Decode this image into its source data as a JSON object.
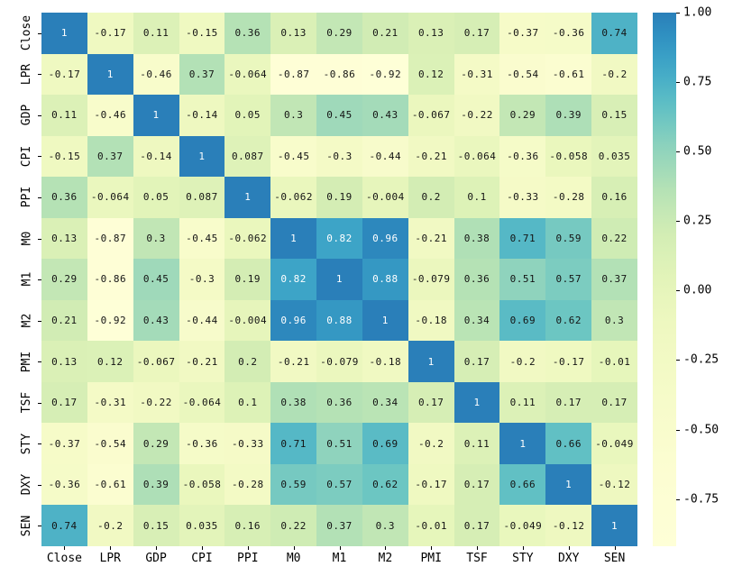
{
  "figure": {
    "background_color": "#ffffff",
    "text_color": "#000000"
  },
  "chart_data": {
    "type": "heatmap",
    "title": "",
    "description": "Correlation matrix heatmap with annotated values",
    "labels": [
      "Close",
      "LPR",
      "GDP",
      "CPI",
      "PPI",
      "M0",
      "M1",
      "M2",
      "PMI",
      "TSF",
      "STY",
      "DXY",
      "SEN"
    ],
    "matrix": [
      [
        1,
        -0.17,
        0.11,
        -0.15,
        0.36,
        0.13,
        0.29,
        0.21,
        0.13,
        0.17,
        -0.37,
        -0.36,
        0.74
      ],
      [
        -0.17,
        1,
        -0.46,
        0.37,
        -0.064,
        -0.87,
        -0.86,
        -0.92,
        0.12,
        -0.31,
        -0.54,
        -0.61,
        -0.2
      ],
      [
        0.11,
        -0.46,
        1,
        -0.14,
        0.05,
        0.3,
        0.45,
        0.43,
        -0.067,
        -0.22,
        0.29,
        0.39,
        0.15
      ],
      [
        -0.15,
        0.37,
        -0.14,
        1,
        0.087,
        -0.45,
        -0.3,
        -0.44,
        -0.21,
        -0.064,
        -0.36,
        -0.058,
        0.035
      ],
      [
        0.36,
        -0.064,
        0.05,
        0.087,
        1,
        -0.062,
        0.19,
        -0.004,
        0.2,
        0.1,
        -0.33,
        -0.28,
        0.16
      ],
      [
        0.13,
        -0.87,
        0.3,
        -0.45,
        -0.062,
        1,
        0.82,
        0.96,
        -0.21,
        0.38,
        0.71,
        0.59,
        0.22
      ],
      [
        0.29,
        -0.86,
        0.45,
        -0.3,
        0.19,
        0.82,
        1,
        0.88,
        -0.079,
        0.36,
        0.51,
        0.57,
        0.37
      ],
      [
        0.21,
        -0.92,
        0.43,
        -0.44,
        -0.004,
        0.96,
        0.88,
        1,
        -0.18,
        0.34,
        0.69,
        0.62,
        0.3
      ],
      [
        0.13,
        0.12,
        -0.067,
        -0.21,
        0.2,
        -0.21,
        -0.079,
        -0.18,
        1,
        0.17,
        -0.2,
        -0.17,
        -0.01
      ],
      [
        0.17,
        -0.31,
        -0.22,
        -0.064,
        0.1,
        0.38,
        0.36,
        0.34,
        0.17,
        1,
        0.11,
        0.17,
        0.17
      ],
      [
        -0.37,
        -0.54,
        0.29,
        -0.36,
        -0.33,
        0.71,
        0.51,
        0.69,
        -0.2,
        0.11,
        1,
        0.66,
        -0.049
      ],
      [
        -0.36,
        -0.61,
        0.39,
        -0.058,
        -0.28,
        0.59,
        0.57,
        0.62,
        -0.17,
        0.17,
        0.66,
        1,
        -0.12
      ],
      [
        0.74,
        -0.2,
        0.15,
        0.035,
        0.16,
        0.22,
        0.37,
        0.3,
        -0.01,
        0.17,
        -0.049,
        -0.12,
        1
      ]
    ],
    "vmin": -0.92,
    "vmax": 1.0,
    "annotated": true,
    "grid": false,
    "colormap": {
      "name": "YlGnBu-like",
      "stops": [
        [
          -1.0,
          "#ffffd9"
        ],
        [
          -0.6,
          "#fbfdd0"
        ],
        [
          -0.3,
          "#f4fac6"
        ],
        [
          -0.1,
          "#edf8bf"
        ],
        [
          0.05,
          "#e2f4b9"
        ],
        [
          0.2,
          "#d3edb4"
        ],
        [
          0.35,
          "#b8e3b5"
        ],
        [
          0.5,
          "#92d4bc"
        ],
        [
          0.65,
          "#63c2c4"
        ],
        [
          0.8,
          "#40a8c8"
        ],
        [
          0.92,
          "#2f90c1"
        ],
        [
          1.0,
          "#2a7fb9"
        ]
      ]
    },
    "colorbar": {
      "position": "right",
      "tick_labels": [
        "1.00",
        "0.75",
        "0.50",
        "0.25",
        "0.00",
        "-0.25",
        "-0.50",
        "-0.75"
      ],
      "tick_values": [
        1,
        0.75,
        0.5,
        0.25,
        0,
        -0.25,
        -0.5,
        -0.75
      ]
    }
  }
}
